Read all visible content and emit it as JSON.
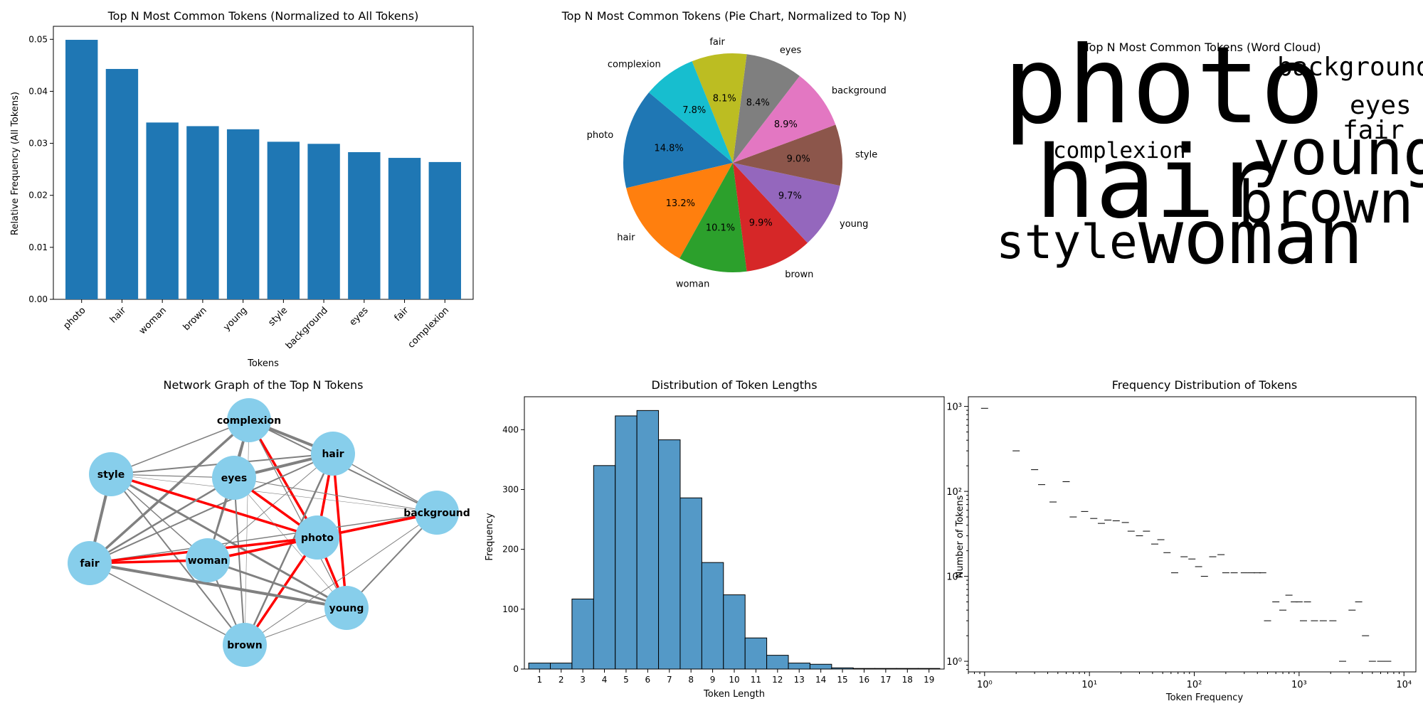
{
  "chart_data": [
    {
      "type": "bar",
      "title": "Top N Most Common Tokens (Normalized to All Tokens)",
      "xlabel": "Tokens",
      "ylabel": "Relative Frequency (All Tokens)",
      "categories": [
        "photo",
        "hair",
        "woman",
        "brown",
        "young",
        "style",
        "background",
        "eyes",
        "fair",
        "complexion"
      ],
      "values": [
        0.0499,
        0.0443,
        0.034,
        0.0333,
        0.0327,
        0.0303,
        0.0299,
        0.0283,
        0.0272,
        0.0264
      ],
      "ylim": [
        0,
        0.0525
      ],
      "yticks": [
        0.0,
        0.01,
        0.02,
        0.03,
        0.04,
        0.05
      ],
      "ytick_labels": [
        "0.00",
        "0.01",
        "0.02",
        "0.03",
        "0.04",
        "0.05"
      ],
      "color": "#1f77b4",
      "grid": false
    },
    {
      "type": "pie",
      "title": "Top N Most Common Tokens (Pie Chart, Normalized to Top N)",
      "labels": [
        "photo",
        "hair",
        "woman",
        "brown",
        "young",
        "style",
        "background",
        "eyes",
        "fair",
        "complexion"
      ],
      "values": [
        14.8,
        13.2,
        10.1,
        9.9,
        9.7,
        9.0,
        8.9,
        8.4,
        8.1,
        7.8
      ],
      "value_labels": [
        "14.8%",
        "13.2%",
        "10.1%",
        "9.9%",
        "9.7%",
        "9.0%",
        "8.9%",
        "8.4%",
        "8.1%",
        "7.8%"
      ],
      "colors": [
        "#1f77b4",
        "#ff7f0e",
        "#2ca02c",
        "#d62728",
        "#9467bd",
        "#8c564b",
        "#e377c2",
        "#7f7f7f",
        "#bcbd22",
        "#17becf"
      ]
    },
    {
      "type": "wordcloud",
      "title": "Top N Most Common Tokens (Word Cloud)",
      "words": [
        {
          "text": "photo",
          "color": "#3e4388"
        },
        {
          "text": "hair",
          "color": "#7ad151"
        },
        {
          "text": "woman",
          "color": "#6ccd5a"
        },
        {
          "text": "young",
          "color": "#2bb07f"
        },
        {
          "text": "brown",
          "color": "#472d7b"
        },
        {
          "text": "style",
          "color": "#2f6c8e"
        },
        {
          "text": "background",
          "color": "#3b528b"
        },
        {
          "text": "eyes",
          "color": "#22a884"
        },
        {
          "text": "fair",
          "color": "#482878"
        },
        {
          "text": "complexion",
          "color": "#46327e"
        }
      ]
    },
    {
      "type": "network",
      "title": "Network Graph of the Top N Tokens",
      "node_color": "#87ceeb",
      "highlight_edge_color": "#ff0000",
      "nodes": [
        "complexion",
        "hair",
        "style",
        "eyes",
        "background",
        "photo",
        "fair",
        "woman",
        "young",
        "brown"
      ],
      "highlight_edges": [
        [
          "photo",
          "complexion"
        ],
        [
          "photo",
          "hair"
        ],
        [
          "photo",
          "style"
        ],
        [
          "photo",
          "eyes"
        ],
        [
          "photo",
          "background"
        ],
        [
          "photo",
          "fair"
        ],
        [
          "photo",
          "woman"
        ],
        [
          "photo",
          "young"
        ],
        [
          "photo",
          "brown"
        ],
        [
          "hair",
          "young"
        ],
        [
          "woman",
          "fair"
        ],
        [
          "woman",
          "background"
        ]
      ]
    },
    {
      "type": "histogram",
      "title": "Distribution of Token Lengths",
      "xlabel": "Token Length",
      "ylabel": "Frequency",
      "x": [
        1,
        2,
        3,
        4,
        5,
        6,
        7,
        8,
        9,
        10,
        11,
        12,
        13,
        14,
        15,
        16,
        17,
        18,
        19
      ],
      "values": [
        10,
        10,
        117,
        340,
        423,
        432,
        383,
        286,
        178,
        124,
        52,
        23,
        10,
        8,
        2,
        1,
        1,
        1,
        1
      ],
      "ylim": [
        0,
        455
      ],
      "yticks": [
        0,
        100,
        200,
        300,
        400
      ],
      "color": "#5499c7"
    },
    {
      "type": "scatter",
      "title": "Frequency Distribution of Tokens",
      "xlabel": "Token Frequency",
      "ylabel": "Number of Tokens",
      "xscale": "log",
      "yscale": "log",
      "xlim": [
        0.7,
        13000
      ],
      "ylim": [
        0.75,
        1300
      ],
      "xtick_labels": [
        "10⁰",
        "10¹",
        "10²",
        "10³",
        "10⁴"
      ],
      "ytick_labels": [
        "10⁰",
        "10¹",
        "10²",
        "10³"
      ],
      "x": [
        1,
        2,
        3,
        3.5,
        4.5,
        6,
        7,
        9,
        11,
        13,
        15,
        18,
        22,
        25,
        30,
        35,
        42,
        48,
        55,
        65,
        80,
        95,
        110,
        125,
        150,
        180,
        200,
        240,
        300,
        350,
        400,
        450,
        500,
        600,
        700,
        800,
        900,
        1000,
        1100,
        1200,
        1400,
        1700,
        2100,
        2600,
        3200,
        3700,
        4300,
        5000,
        6000,
        7000
      ],
      "y": [
        950,
        300,
        180,
        120,
        75,
        130,
        50,
        58,
        48,
        42,
        46,
        45,
        43,
        34,
        30,
        34,
        24,
        27,
        19,
        11,
        17,
        16,
        13,
        10,
        17,
        18,
        11,
        11,
        11,
        11,
        11,
        11,
        3,
        5,
        4,
        6,
        5,
        5,
        3,
        5,
        3,
        3,
        3,
        1,
        4,
        5,
        2,
        1,
        1,
        1
      ],
      "marker": "_"
    }
  ]
}
